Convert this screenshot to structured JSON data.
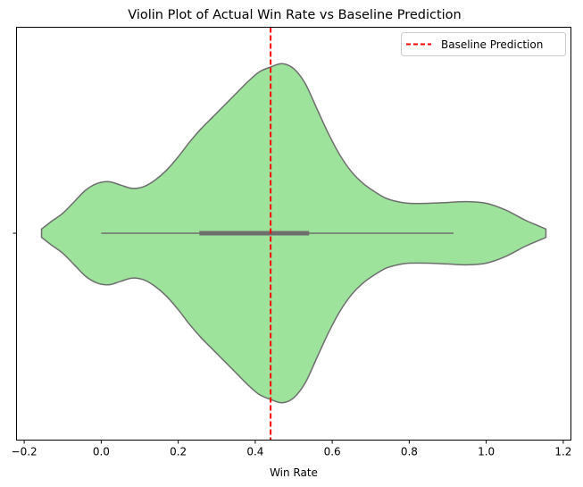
{
  "chart_data": {
    "type": "violin",
    "orientation": "horizontal",
    "title": "Violin Plot of Actual Win Rate vs Baseline Prediction",
    "xlabel": "Win Rate",
    "ylabel": "",
    "xlim": [
      -0.22,
      1.22
    ],
    "xticks": [
      -0.2,
      0.0,
      0.2,
      0.4,
      0.6,
      0.8,
      1.0,
      1.2
    ],
    "xtick_labels": [
      "−0.2",
      "0.0",
      "0.2",
      "0.4",
      "0.6",
      "0.8",
      "1.0",
      "1.2"
    ],
    "ytick_labels": [
      ""
    ],
    "violin": {
      "fill_color": "#9de39b",
      "edge_color": "#6e6e6e",
      "x_min": -0.155,
      "x_max": 1.155,
      "density_profile": [
        [
          -0.155,
          0.025
        ],
        [
          -0.13,
          0.07
        ],
        [
          -0.1,
          0.12
        ],
        [
          -0.07,
          0.19
        ],
        [
          -0.04,
          0.26
        ],
        [
          -0.01,
          0.3
        ],
        [
          0.02,
          0.31
        ],
        [
          0.05,
          0.29
        ],
        [
          0.08,
          0.27
        ],
        [
          0.11,
          0.28
        ],
        [
          0.14,
          0.32
        ],
        [
          0.17,
          0.38
        ],
        [
          0.2,
          0.46
        ],
        [
          0.23,
          0.55
        ],
        [
          0.26,
          0.63
        ],
        [
          0.29,
          0.7
        ],
        [
          0.32,
          0.77
        ],
        [
          0.35,
          0.84
        ],
        [
          0.38,
          0.91
        ],
        [
          0.41,
          0.97
        ],
        [
          0.44,
          1.0
        ],
        [
          0.47,
          1.02
        ],
        [
          0.5,
          0.99
        ],
        [
          0.53,
          0.9
        ],
        [
          0.56,
          0.75
        ],
        [
          0.59,
          0.6
        ],
        [
          0.62,
          0.47
        ],
        [
          0.65,
          0.37
        ],
        [
          0.68,
          0.3
        ],
        [
          0.71,
          0.25
        ],
        [
          0.74,
          0.21
        ],
        [
          0.77,
          0.19
        ],
        [
          0.8,
          0.18
        ],
        [
          0.85,
          0.18
        ],
        [
          0.9,
          0.185
        ],
        [
          0.95,
          0.19
        ],
        [
          1.0,
          0.18
        ],
        [
          1.05,
          0.14
        ],
        [
          1.1,
          0.08
        ],
        [
          1.13,
          0.05
        ],
        [
          1.155,
          0.025
        ]
      ],
      "whisker_low": 0.0,
      "whisker_high": 0.915,
      "q1": 0.255,
      "q3": 0.54
    },
    "reference_line": {
      "x": 0.44,
      "label": "Baseline Prediction",
      "color": "#ff0000",
      "style": "dashed"
    },
    "legend_position": "top-right",
    "grid": false
  }
}
